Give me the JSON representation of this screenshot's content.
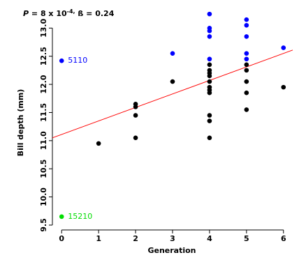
{
  "chart_data": {
    "type": "scatter",
    "title": {
      "p_symbol": "P",
      "text": " = 8 x 10",
      "exponent": "-4,",
      "rest": " ß = 0.24"
    },
    "x_label": "Generation",
    "y_label": "Bill depth (mm)",
    "xlim": [
      -0.25,
      6.25
    ],
    "ylim": [
      9.5,
      13.4
    ],
    "xticks": [
      0,
      1,
      2,
      3,
      4,
      5,
      6
    ],
    "yticks": [
      9.5,
      {
        "value": 10,
        "label": "10.0"
      },
      10.5,
      {
        "value": 11,
        "label": "11.0"
      },
      11.5,
      {
        "value": 12,
        "label": "12.0"
      },
      12.5,
      {
        "value": 13,
        "label": "13.0"
      }
    ],
    "series": [
      {
        "color": "#000000",
        "x": [
          1,
          2,
          2,
          2,
          2,
          3,
          4,
          4,
          4,
          4,
          4,
          4,
          4,
          4,
          4,
          4,
          4,
          5,
          5,
          5,
          5,
          5,
          6
        ],
        "values": [
          10.95,
          11.05,
          11.45,
          11.6,
          11.65,
          12.05,
          11.05,
          11.35,
          11.45,
          11.85,
          11.9,
          11.95,
          12.05,
          12.15,
          12.2,
          12.25,
          12.35,
          11.55,
          11.85,
          12.05,
          12.25,
          12.35,
          11.95
        ]
      },
      {
        "color": "#0000ff",
        "x": [
          3,
          4,
          4,
          4,
          4,
          4,
          5,
          5,
          5,
          5,
          5,
          6
        ],
        "values": [
          12.55,
          12.45,
          12.85,
          12.95,
          13.0,
          13.25,
          12.45,
          12.55,
          12.85,
          13.05,
          13.15,
          12.65
        ]
      },
      {
        "name": "5110",
        "color": "#0000ff",
        "x": [
          0
        ],
        "values": [
          12.42
        ]
      },
      {
        "name": "15210",
        "color": "#00dd00",
        "x": [
          0
        ],
        "values": [
          9.65
        ]
      }
    ],
    "trendline": {
      "color": "#ff0000",
      "x": [
        -0.25,
        6.25
      ],
      "values": [
        11.05,
        12.61
      ]
    }
  }
}
